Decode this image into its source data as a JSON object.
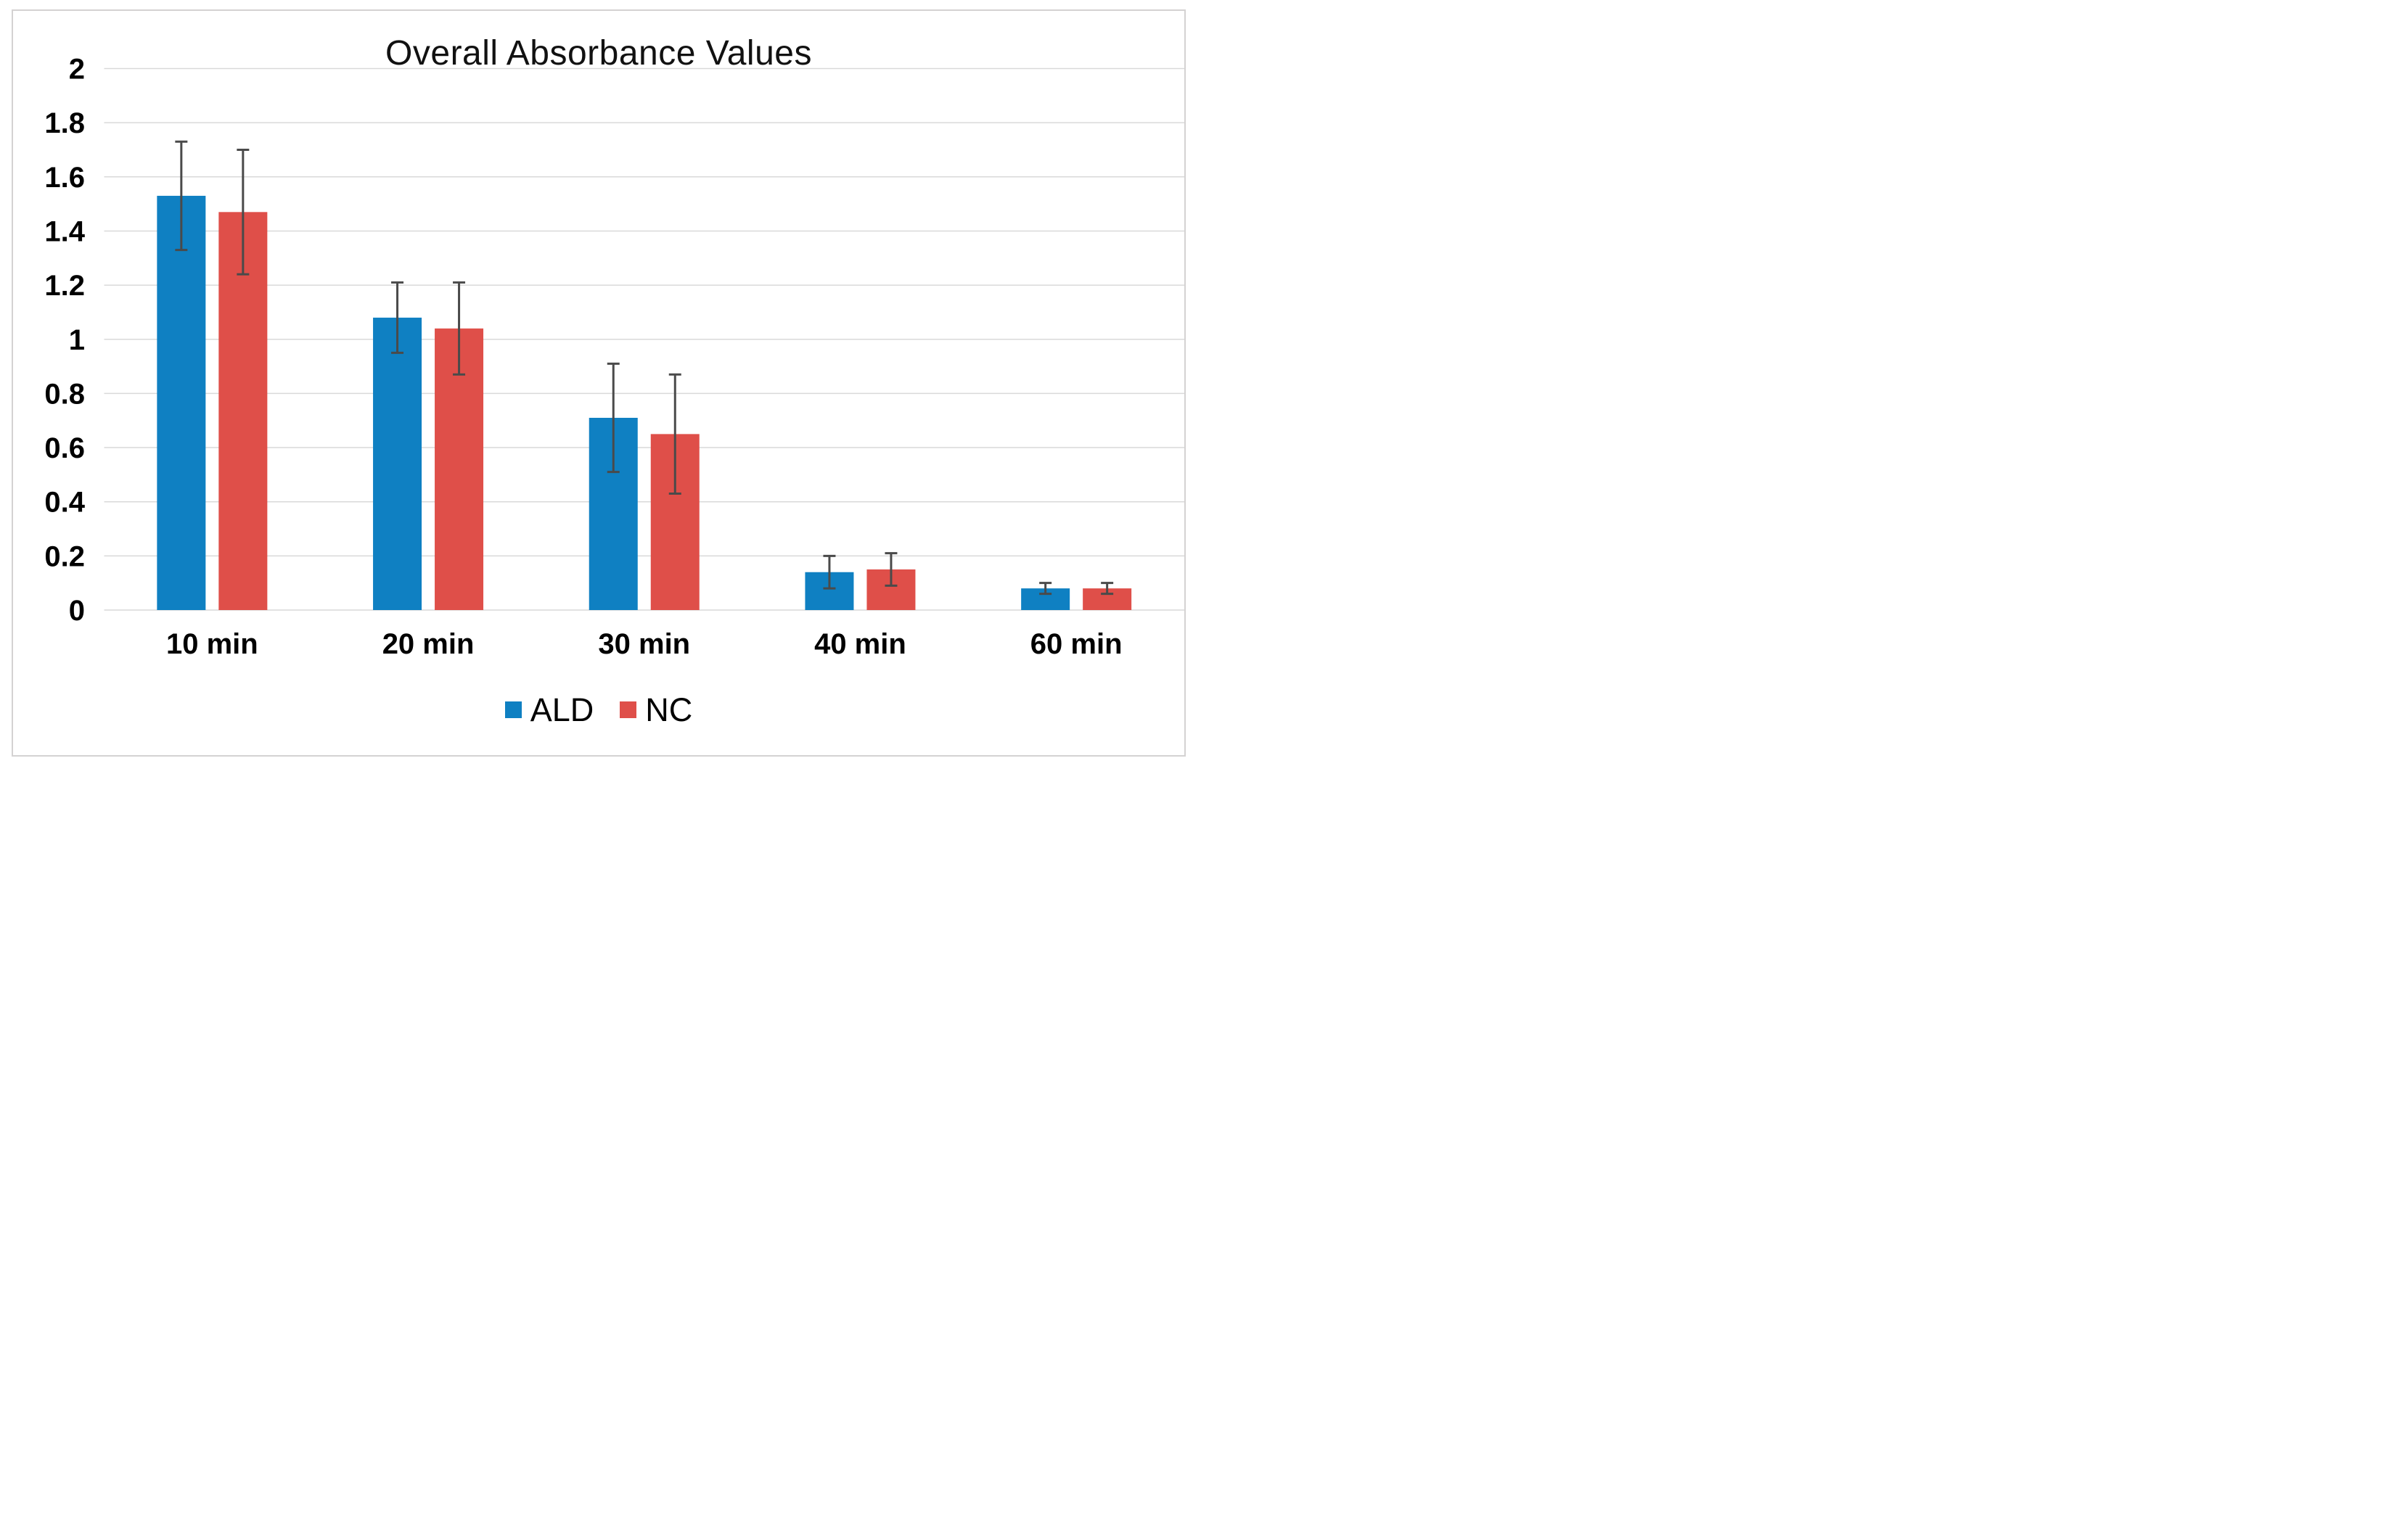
{
  "chart_data": {
    "type": "bar",
    "title": "Overall Absorbance Values",
    "categories": [
      "10 min",
      "20 min",
      "30 min",
      "40 min",
      "60 min"
    ],
    "series": [
      {
        "name": "ALD",
        "color": "#0f80c2",
        "values": [
          1.53,
          1.08,
          0.71,
          0.14,
          0.08
        ],
        "errors": [
          0.2,
          0.13,
          0.2,
          0.06,
          0.02
        ]
      },
      {
        "name": "NC",
        "color": "#df4f49",
        "values": [
          1.47,
          1.04,
          0.65,
          0.15,
          0.08
        ],
        "errors": [
          0.23,
          0.17,
          0.22,
          0.06,
          0.02
        ]
      }
    ],
    "ylim": [
      0,
      2
    ],
    "yticks": [
      "2",
      "1.8",
      "1.6",
      "1.4",
      "1.2",
      "1",
      "0.8",
      "0.6",
      "0.4",
      "0.2",
      "0"
    ],
    "xlabel": "",
    "ylabel": "",
    "grid": "horizontal",
    "legend_position": "bottom",
    "error_bars": true,
    "colors": {
      "gridline": "#d9d9d9",
      "axis_line": "#d9d9d9",
      "error_bar": "#4a4a4a",
      "frame_border": "#d4d2d2",
      "text": "#000000"
    }
  }
}
